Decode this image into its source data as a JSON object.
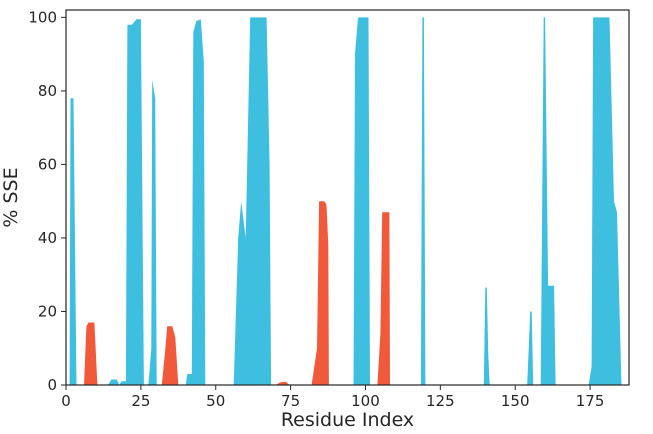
{
  "chart_data": {
    "type": "area",
    "xlabel": "Residue Index",
    "ylabel": "% SSE",
    "xlim": [
      0,
      188
    ],
    "ylim": [
      0,
      102
    ],
    "xticks": [
      0,
      25,
      50,
      75,
      100,
      125,
      150,
      175
    ],
    "yticks": [
      0,
      20,
      40,
      60,
      80,
      100
    ],
    "grid": false,
    "series": [
      {
        "color": "#f05a3a",
        "points": [
          [
            0,
            0
          ],
          [
            6,
            0
          ],
          [
            6.8,
            16
          ],
          [
            7.5,
            17
          ],
          [
            9.5,
            17
          ],
          [
            10.5,
            0
          ],
          [
            32,
            0
          ],
          [
            33.2,
            10
          ],
          [
            33.8,
            16
          ],
          [
            35.5,
            16
          ],
          [
            36.5,
            13
          ],
          [
            37.5,
            0
          ],
          [
            70,
            0
          ],
          [
            71.5,
            0.7
          ],
          [
            73.5,
            0.9
          ],
          [
            74.5,
            0
          ],
          [
            82,
            0
          ],
          [
            83.8,
            10
          ],
          [
            84.5,
            50
          ],
          [
            86.3,
            50
          ],
          [
            87,
            49
          ],
          [
            87.6,
            38
          ],
          [
            87.8,
            0
          ],
          [
            104,
            0
          ],
          [
            105,
            14
          ],
          [
            105.6,
            47
          ],
          [
            108,
            47
          ],
          [
            108.2,
            0
          ],
          [
            188,
            0
          ]
        ]
      },
      {
        "color": "#3fbfe0",
        "points": [
          [
            0,
            0
          ],
          [
            1.2,
            0
          ],
          [
            1.5,
            78
          ],
          [
            2.5,
            78
          ],
          [
            3.5,
            0
          ],
          [
            14,
            0
          ],
          [
            15.2,
            1.5
          ],
          [
            17,
            1.5
          ],
          [
            17.8,
            0
          ],
          [
            18.5,
            1
          ],
          [
            20,
            1
          ],
          [
            20.5,
            98
          ],
          [
            22,
            98
          ],
          [
            23.5,
            99.5
          ],
          [
            25,
            99.5
          ],
          [
            26,
            0
          ],
          [
            27.5,
            0
          ],
          [
            28.5,
            10
          ],
          [
            28.8,
            83
          ],
          [
            29.8,
            78
          ],
          [
            30.3,
            0
          ],
          [
            40,
            0
          ],
          [
            40.5,
            3
          ],
          [
            42,
            3
          ],
          [
            42.5,
            96
          ],
          [
            43.5,
            99
          ],
          [
            45,
            99.5
          ],
          [
            46,
            88
          ],
          [
            46.5,
            0
          ],
          [
            56,
            0
          ],
          [
            57.5,
            40
          ],
          [
            58.5,
            50
          ],
          [
            60,
            40
          ],
          [
            61.5,
            100
          ],
          [
            67,
            100
          ],
          [
            68,
            60
          ],
          [
            68.5,
            0
          ],
          [
            96,
            0
          ],
          [
            96.5,
            90
          ],
          [
            97.5,
            100
          ],
          [
            101,
            100
          ],
          [
            101.5,
            0
          ],
          [
            118.5,
            0
          ],
          [
            119,
            100
          ],
          [
            119.5,
            100
          ],
          [
            120,
            0
          ],
          [
            139.5,
            0
          ],
          [
            140,
            26.5
          ],
          [
            140.5,
            26.5
          ],
          [
            141,
            8
          ],
          [
            141.5,
            0
          ],
          [
            154,
            0
          ],
          [
            155,
            20
          ],
          [
            155.5,
            20
          ],
          [
            156,
            0
          ],
          [
            158.5,
            0
          ],
          [
            159.5,
            100
          ],
          [
            160,
            100
          ],
          [
            161,
            27
          ],
          [
            163,
            27
          ],
          [
            163.5,
            0
          ],
          [
            174.5,
            0
          ],
          [
            175.5,
            5
          ],
          [
            176,
            100
          ],
          [
            181.5,
            100
          ],
          [
            183,
            50
          ],
          [
            184,
            47
          ],
          [
            185.5,
            0
          ],
          [
            188,
            0
          ]
        ]
      }
    ]
  }
}
